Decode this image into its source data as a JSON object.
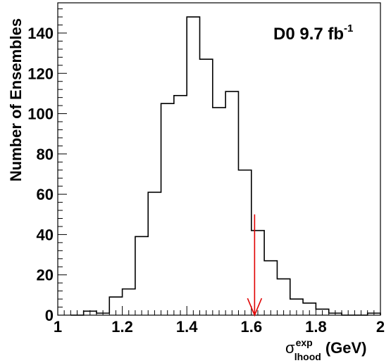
{
  "chart_data": {
    "type": "histogram",
    "annotation": {
      "base": "D0 9.7 fb",
      "sup": "-1"
    },
    "ylabel": "Number of Ensembles",
    "xlabel": {
      "symbol": "σ",
      "sup": "exp",
      "sub": "lhood",
      "unit": "(GeV)"
    },
    "xlim": [
      1.0,
      2.0
    ],
    "ylim": [
      0,
      155
    ],
    "x_ticks": [
      1,
      1.2,
      1.4,
      1.6,
      1.8,
      2
    ],
    "x_tick_labels": [
      "1",
      "1.2",
      "1.4",
      "1.6",
      "1.8",
      "2"
    ],
    "y_ticks": [
      0,
      20,
      40,
      60,
      80,
      100,
      120,
      140
    ],
    "y_tick_labels": [
      "0",
      "20",
      "40",
      "60",
      "80",
      "100",
      "120",
      "140"
    ],
    "bin_width": 0.04,
    "bins": [
      {
        "x0": 1.04,
        "value": 0
      },
      {
        "x0": 1.08,
        "value": 2
      },
      {
        "x0": 1.12,
        "value": 1
      },
      {
        "x0": 1.16,
        "value": 9
      },
      {
        "x0": 1.2,
        "value": 13
      },
      {
        "x0": 1.24,
        "value": 39
      },
      {
        "x0": 1.28,
        "value": 61
      },
      {
        "x0": 1.32,
        "value": 105
      },
      {
        "x0": 1.36,
        "value": 109
      },
      {
        "x0": 1.4,
        "value": 148
      },
      {
        "x0": 1.44,
        "value": 127
      },
      {
        "x0": 1.48,
        "value": 103
      },
      {
        "x0": 1.52,
        "value": 111
      },
      {
        "x0": 1.56,
        "value": 72
      },
      {
        "x0": 1.6,
        "value": 42
      },
      {
        "x0": 1.64,
        "value": 27
      },
      {
        "x0": 1.68,
        "value": 18
      },
      {
        "x0": 1.72,
        "value": 8
      },
      {
        "x0": 1.76,
        "value": 6
      },
      {
        "x0": 1.8,
        "value": 3
      },
      {
        "x0": 1.84,
        "value": 1
      },
      {
        "x0": 1.88,
        "value": 0
      },
      {
        "x0": 1.92,
        "value": 0
      },
      {
        "x0": 1.96,
        "value": 1
      }
    ],
    "arrow": {
      "x": 1.61,
      "y_from": 50,
      "y_to": 0,
      "color": "#e00000"
    },
    "line_color": "#000000"
  }
}
